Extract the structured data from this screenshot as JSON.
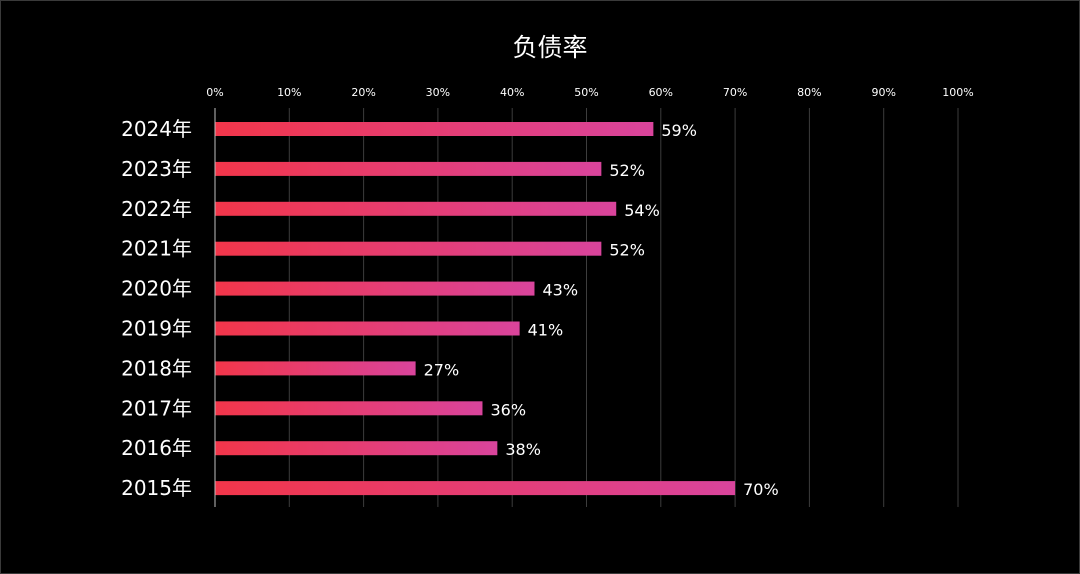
{
  "chart_data": {
    "type": "bar",
    "orientation": "horizontal",
    "title": "负债率",
    "xlabel": "",
    "ylabel": "",
    "xlim": [
      0,
      100
    ],
    "x_ticks": [
      "0%",
      "10%",
      "20%",
      "30%",
      "40%",
      "50%",
      "60%",
      "70%",
      "80%",
      "90%",
      "100%"
    ],
    "x_axis_position": "top",
    "grid": true,
    "legend": "none",
    "categories": [
      "2024年",
      "2023年",
      "2022年",
      "2021年",
      "2020年",
      "2019年",
      "2018年",
      "2017年",
      "2016年",
      "2015年"
    ],
    "values": [
      59,
      52,
      54,
      52,
      43,
      41,
      27,
      36,
      38,
      70
    ],
    "data_labels": [
      "59%",
      "52%",
      "54%",
      "52%",
      "43%",
      "41%",
      "27%",
      "36%",
      "38%",
      "70%"
    ]
  },
  "colors": {
    "background": "#000000",
    "bar_gradient_start": "#f2364a",
    "bar_gradient_end": "#d9449c",
    "gridline": "#3d3d3d",
    "axis": "#bfbfbf",
    "text": "#ffffff"
  }
}
